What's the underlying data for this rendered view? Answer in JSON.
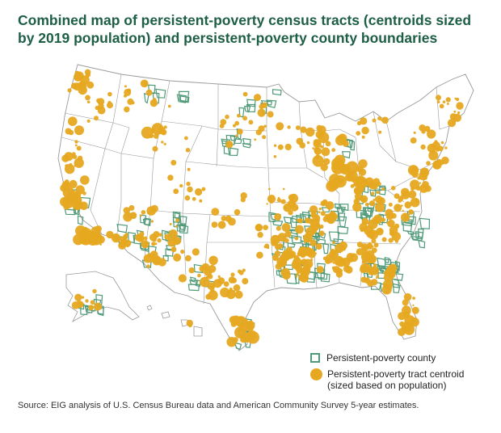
{
  "title": "Combined map of persistent-poverty census tracts (centroids sized by 2019 population) and persistent-poverty county boundaries",
  "legend": {
    "county_label": "Persistent-poverty county",
    "tract_label_line1": "Persistent-poverty tract centroid",
    "tract_label_line2": "(sized based on population)"
  },
  "source": "Source: EIG analysis of U.S. Census Bureau data and American Community Survey 5-year estimates.",
  "colors": {
    "tract": "#e6a820",
    "county": "#4f9a78",
    "state_border": "#9a9a9a",
    "land": "#ffffff",
    "title": "#1d5e45"
  }
}
